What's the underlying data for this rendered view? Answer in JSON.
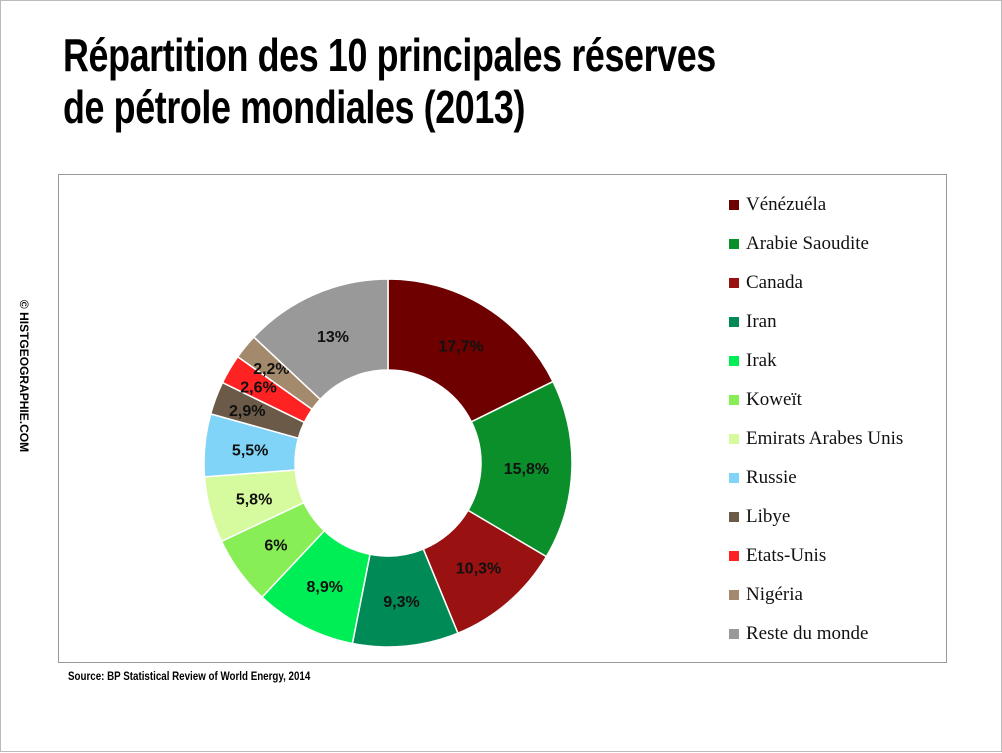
{
  "title_line1": "Répartition des 10 principales réserves",
  "title_line2": "de pétrole mondiales (2013)",
  "watermark": "© HISTGEOGRAPHIE.COM",
  "source": "Source: BP Statistical Review of World Energy, 2014",
  "chart_data": {
    "type": "pie",
    "variant": "donut",
    "title": "Répartition des 10 principales réserves de pétrole mondiales (2013)",
    "legend_position": "right",
    "categories": [
      "Vénézuéla",
      "Arabie Saoudite",
      "Canada",
      "Iran",
      "Irak",
      "Koweït",
      "Emirats Arabes Unis",
      "Russie",
      "Libye",
      "Etats-Unis",
      "Nigéria",
      "Reste du monde"
    ],
    "values": [
      17.7,
      15.8,
      10.3,
      9.3,
      8.9,
      6,
      5.8,
      5.5,
      2.9,
      2.6,
      2.2,
      13
    ],
    "labels": [
      "17,7%",
      "15,8%",
      "10,3%",
      "9,3%",
      "8,9%",
      "6%",
      "5,8%",
      "5,5%",
      "2,9%",
      "2,6%",
      "2,2%",
      "13%"
    ],
    "colors": [
      "#6e0000",
      "#0a8f2a",
      "#991111",
      "#008a55",
      "#00ee55",
      "#88ee55",
      "#d6fa9e",
      "#80d4f8",
      "#6b5a48",
      "#ff2222",
      "#a38a6c",
      "#999999"
    ]
  }
}
